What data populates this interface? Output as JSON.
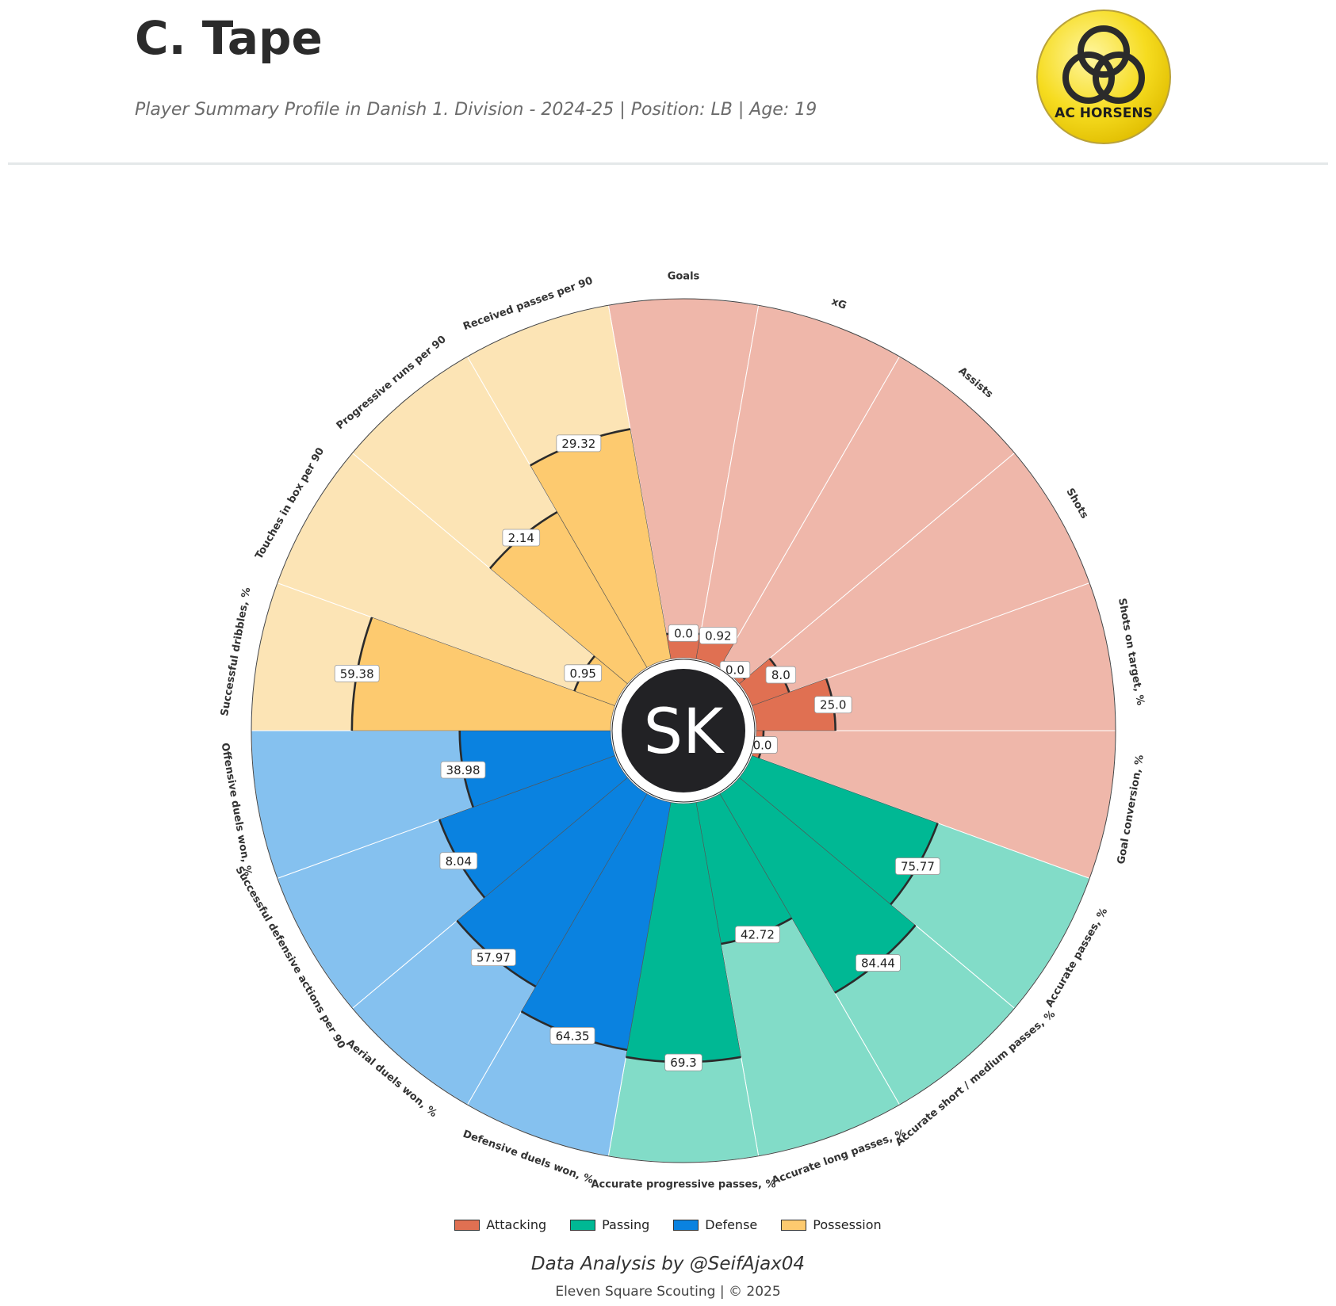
{
  "header": {
    "title": "C. Tape",
    "subtitle": "Player Summary Profile in Danish 1. Division - 2024-25 | Position: LB | Age: 19"
  },
  "club_logo": {
    "text": "AC HORSENS",
    "icon": "three-rings-crest-icon"
  },
  "center_badge": {
    "text": "SK"
  },
  "chart_data": {
    "type": "radial-bar",
    "title": "",
    "scale_max": 100,
    "categories": [
      {
        "name": "Attacking",
        "color": "#e07052",
        "light_color": "#efb7aa"
      },
      {
        "name": "Passing",
        "color": "#00b894",
        "light_color": "#82dcc8"
      },
      {
        "name": "Defense",
        "color": "#0a82e0",
        "light_color": "#85c1ef"
      },
      {
        "name": "Possession",
        "color": "#fdca6f",
        "light_color": "#fce4b5"
      }
    ],
    "metrics": [
      {
        "label": "Goals",
        "category": "Attacking",
        "value": 0.0,
        "percentile": 7
      },
      {
        "label": "xG",
        "category": "Attacking",
        "value": 0.92,
        "percentile": 8
      },
      {
        "label": "Assists",
        "category": "Attacking",
        "value": 0.0,
        "percentile": 2
      },
      {
        "label": "Shots",
        "category": "Attacking",
        "value": 8.0,
        "percentile": 11
      },
      {
        "label": "Shots on target, %",
        "category": "Attacking",
        "value": 25.0,
        "percentile": 22
      },
      {
        "label": "Goal conversion, %",
        "category": "Attacking",
        "value": 0.0,
        "percentile": 2
      },
      {
        "label": "Accurate passes, %",
        "category": "Passing",
        "value": 75.77,
        "percentile": 55
      },
      {
        "label": "Accurate short / medium passes, %",
        "category": "Passing",
        "value": 84.44,
        "percentile": 64
      },
      {
        "label": "Accurate long passes, %",
        "category": "Passing",
        "value": 42.72,
        "percentile": 40
      },
      {
        "label": "Accurate progressive passes, %",
        "category": "Passing",
        "value": 69.3,
        "percentile": 72
      },
      {
        "label": "Defensive duels won, %",
        "category": "Defense",
        "value": 64.35,
        "percentile": 70
      },
      {
        "label": "Aerial duels won, %",
        "category": "Defense",
        "value": 57.97,
        "percentile": 62
      },
      {
        "label": "Successful defensive actions per 90",
        "category": "Defense",
        "value": 8.04,
        "percentile": 52
      },
      {
        "label": "Offensive duels won, %",
        "category": "Defense",
        "value": 38.98,
        "percentile": 42
      },
      {
        "label": "Successful dribbles, %",
        "category": "Possession",
        "value": 59.38,
        "percentile": 72
      },
      {
        "label": "Touches in box per 90",
        "category": "Possession",
        "value": 0.95,
        "percentile": 12
      },
      {
        "label": "Progressive runs per 90",
        "category": "Possession",
        "value": 2.14,
        "percentile": 50
      },
      {
        "label": "Received passes per 90",
        "category": "Possession",
        "value": 29.32,
        "percentile": 65
      }
    ],
    "legend_placement": "bottom-center"
  },
  "credit": "Data Analysis by @SeifAjax04",
  "footer": "Eleven Square Scouting | © 2025"
}
